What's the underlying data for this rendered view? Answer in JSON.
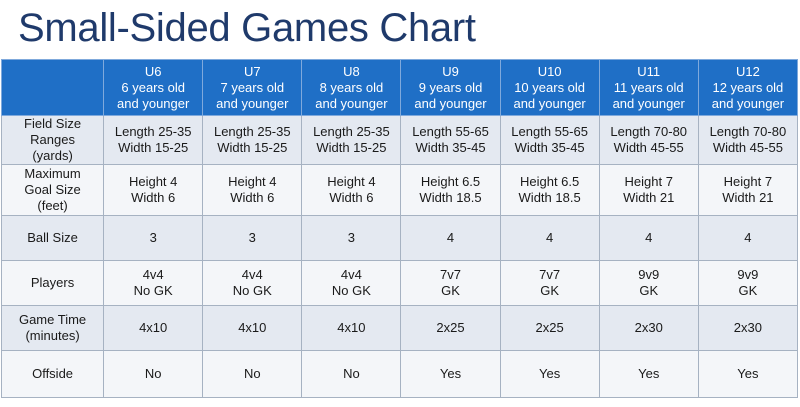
{
  "title": "Small-Sided Games Chart",
  "columns": [
    {
      "age": "U6",
      "desc1": "6 years old",
      "desc2": "and younger"
    },
    {
      "age": "U7",
      "desc1": "7 years old",
      "desc2": "and younger"
    },
    {
      "age": "U8",
      "desc1": "8 years old",
      "desc2": "and younger"
    },
    {
      "age": "U9",
      "desc1": "9 years old",
      "desc2": "and younger"
    },
    {
      "age": "U10",
      "desc1": "10 years old",
      "desc2": "and younger"
    },
    {
      "age": "U11",
      "desc1": "11 years old",
      "desc2": "and younger"
    },
    {
      "age": "U12",
      "desc1": "12 years old",
      "desc2": "and younger"
    }
  ],
  "rows": {
    "field": {
      "label": [
        "Field Size",
        "Ranges",
        "(yards)"
      ],
      "cells": [
        [
          "Length 25-35",
          "Width 15-25"
        ],
        [
          "Length 25-35",
          "Width 15-25"
        ],
        [
          "Length 25-35",
          "Width 15-25"
        ],
        [
          "Length 55-65",
          "Width 35-45"
        ],
        [
          "Length 55-65",
          "Width 35-45"
        ],
        [
          "Length 70-80",
          "Width 45-55"
        ],
        [
          "Length 70-80",
          "Width 45-55"
        ]
      ]
    },
    "goal": {
      "label": [
        "Maximum",
        "Goal Size",
        "(feet)"
      ],
      "cells": [
        [
          "Height 4",
          "Width 6"
        ],
        [
          "Height 4",
          "Width 6"
        ],
        [
          "Height 4",
          "Width 6"
        ],
        [
          "Height 6.5",
          "Width 18.5"
        ],
        [
          "Height 6.5",
          "Width 18.5"
        ],
        [
          "Height 7",
          "Width 21"
        ],
        [
          "Height 7",
          "Width 21"
        ]
      ]
    },
    "ball": {
      "label": [
        "Ball Size"
      ],
      "cells": [
        [
          "3"
        ],
        [
          "3"
        ],
        [
          "3"
        ],
        [
          "4"
        ],
        [
          "4"
        ],
        [
          "4"
        ],
        [
          "4"
        ]
      ]
    },
    "players": {
      "label": [
        "Players"
      ],
      "cells": [
        [
          "4v4",
          "No GK"
        ],
        [
          "4v4",
          "No GK"
        ],
        [
          "4v4",
          "No GK"
        ],
        [
          "7v7",
          "GK"
        ],
        [
          "7v7",
          "GK"
        ],
        [
          "9v9",
          "GK"
        ],
        [
          "9v9",
          "GK"
        ]
      ]
    },
    "time": {
      "label": [
        "Game Time",
        "(minutes)"
      ],
      "cells": [
        [
          "4x10"
        ],
        [
          "4x10"
        ],
        [
          "4x10"
        ],
        [
          "2x25"
        ],
        [
          "2x25"
        ],
        [
          "2x30"
        ],
        [
          "2x30"
        ]
      ]
    },
    "offside": {
      "label": [
        "Offside"
      ],
      "cells": [
        [
          "No"
        ],
        [
          "No"
        ],
        [
          "No"
        ],
        [
          "Yes"
        ],
        [
          "Yes"
        ],
        [
          "Yes"
        ],
        [
          "Yes"
        ]
      ]
    }
  },
  "colors": {
    "title": "#1f3a6b",
    "header_bg": "#1f6fc6",
    "row_band_a": "#e4e9f1",
    "row_band_b": "#f4f6f9"
  }
}
